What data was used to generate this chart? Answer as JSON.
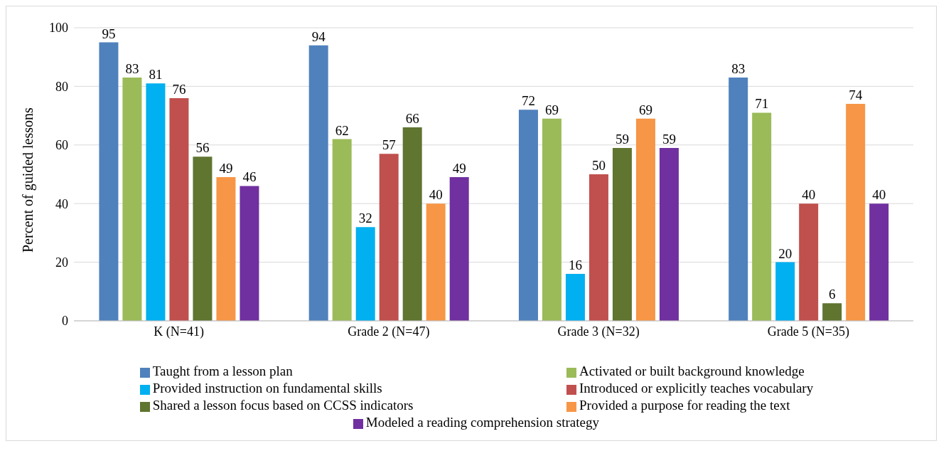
{
  "chart_data": {
    "type": "bar",
    "ylabel": "Percent of guided lessons",
    "categories": [
      "K (N=41)",
      "Grade 2 (N=47)",
      "Grade 3 (N=32)",
      "Grade 5 (N=35)"
    ],
    "series": [
      {
        "name": "Taught from a lesson plan",
        "color": "#4f81bd",
        "values": [
          95,
          94,
          72,
          83
        ]
      },
      {
        "name": "Activated or built background knowledge",
        "color": "#9bbb59",
        "values": [
          83,
          62,
          69,
          71
        ]
      },
      {
        "name": "Provided instruction on fundamental skills",
        "color": "#00b0f0",
        "values": [
          81,
          32,
          16,
          20
        ]
      },
      {
        "name": "Introduced or explicitly teaches vocabulary",
        "color": "#c0504d",
        "values": [
          76,
          57,
          50,
          40
        ]
      },
      {
        "name": "Shared a lesson focus based on CCSS indicators",
        "color": "#5f7530",
        "values": [
          56,
          66,
          59,
          6
        ]
      },
      {
        "name": "Provided a purpose for reading the text",
        "color": "#f79646",
        "values": [
          49,
          40,
          69,
          74
        ]
      },
      {
        "name": "Modeled  a reading comprehension strategy",
        "color": "#7030a0",
        "values": [
          46,
          49,
          59,
          40
        ]
      }
    ],
    "ylim": [
      0,
      100
    ],
    "yticks": [
      0,
      20,
      40,
      60,
      80,
      100
    ],
    "grid": "y",
    "legend": "bottom",
    "data_labels": true
  }
}
